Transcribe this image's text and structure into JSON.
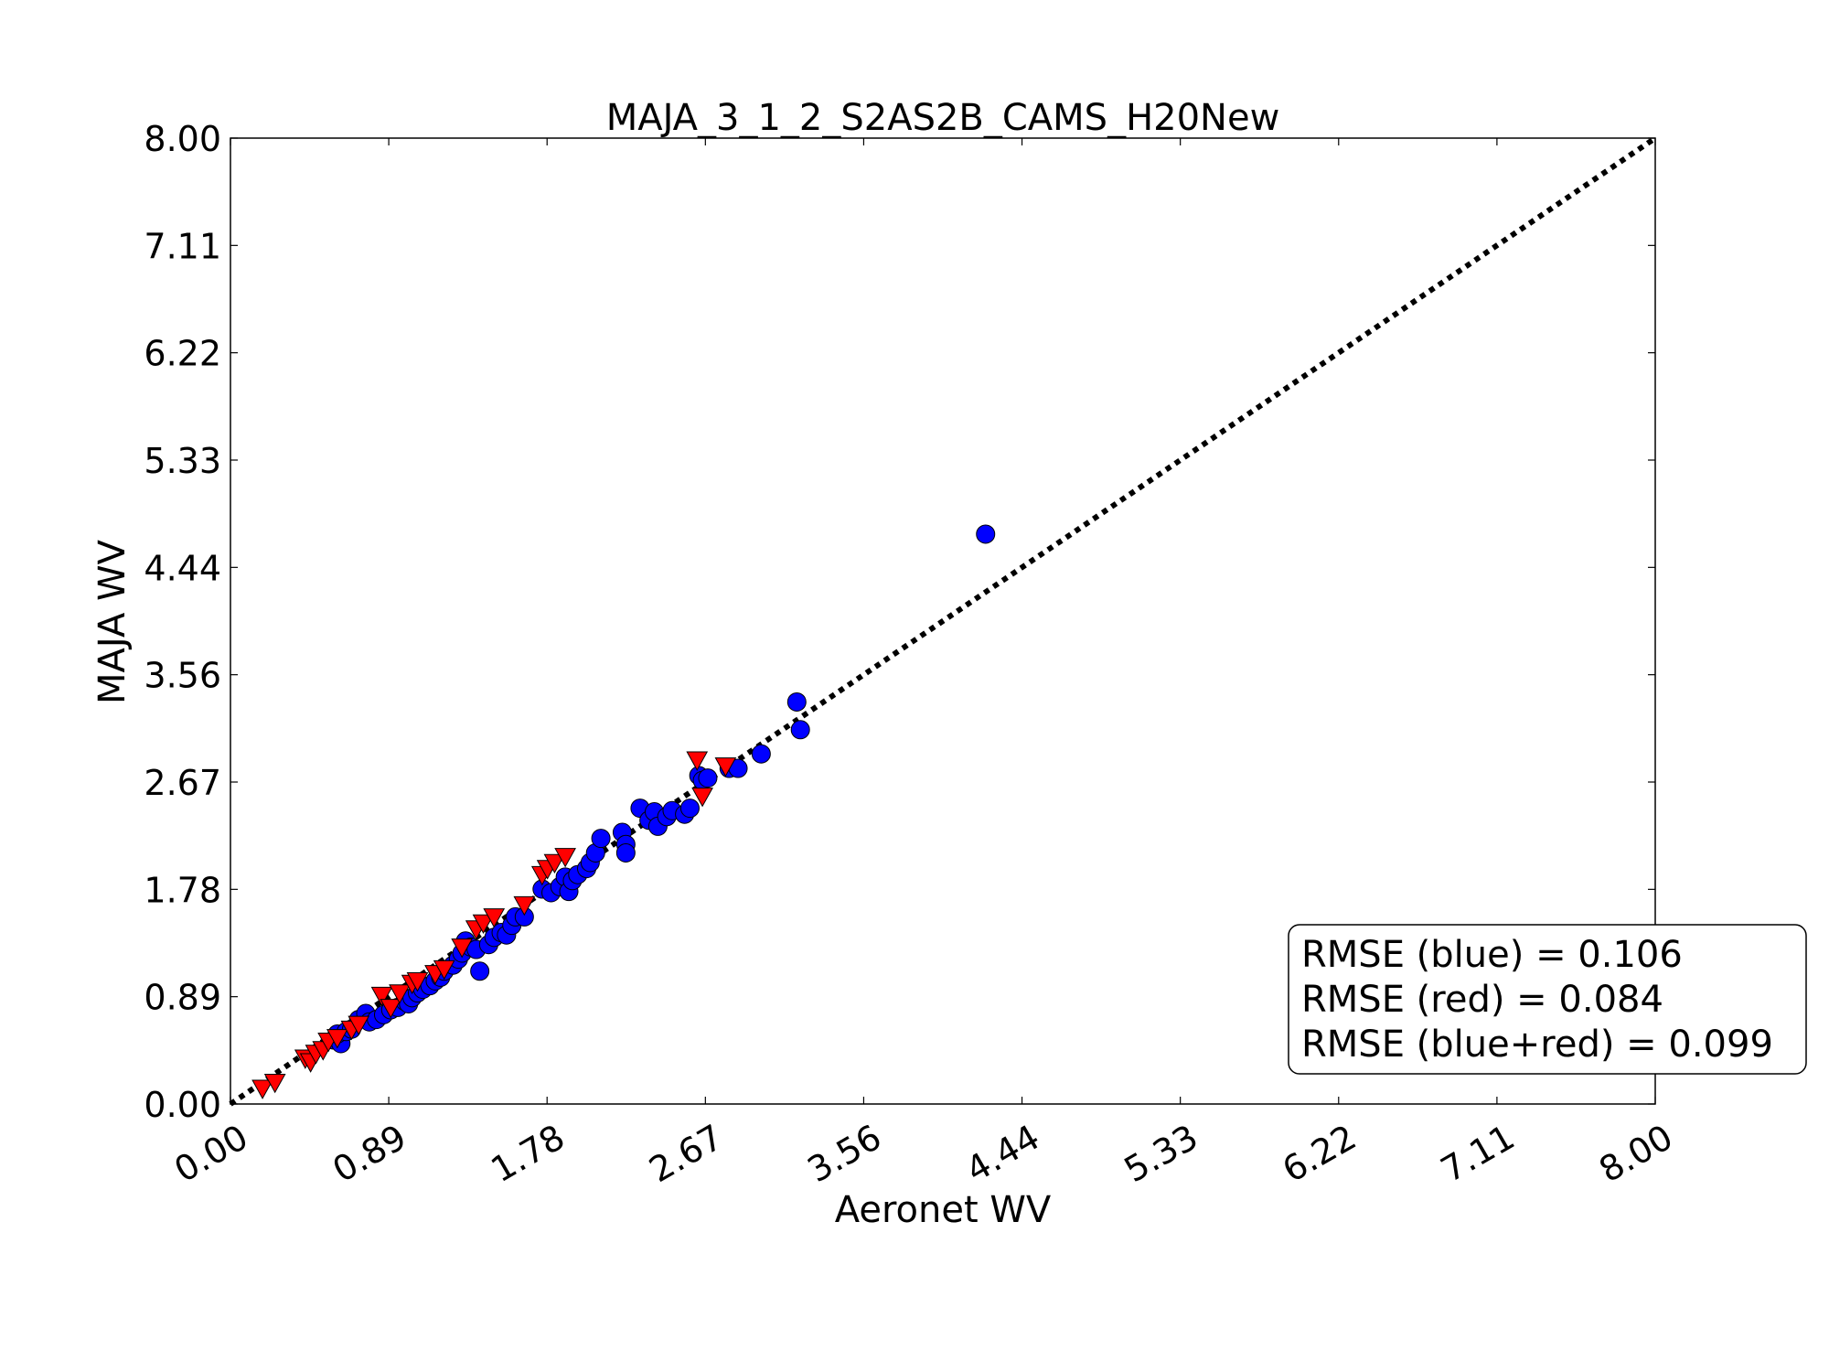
{
  "chart_data": {
    "type": "scatter",
    "title": "MAJA_3_1_2_S2AS2B_CAMS_H20New",
    "xlabel": "Aeronet WV",
    "ylabel": "MAJA WV",
    "xlim": [
      0,
      8
    ],
    "ylim": [
      0,
      8
    ],
    "x_ticks": [
      "0.00",
      "0.89",
      "1.78",
      "2.67",
      "3.56",
      "4.44",
      "5.33",
      "6.22",
      "7.11",
      "8.00"
    ],
    "y_ticks": [
      "0.00",
      "0.89",
      "1.78",
      "2.67",
      "3.56",
      "4.44",
      "5.33",
      "6.22",
      "7.11",
      "8.00"
    ],
    "grid": false,
    "reference_line": {
      "type": "identity",
      "style": "dotted",
      "color": "#000000"
    },
    "series": [
      {
        "marker": "circle",
        "color": "#0000ff",
        "points": [
          [
            0.58,
            0.53
          ],
          [
            0.62,
            0.5
          ],
          [
            0.6,
            0.58
          ],
          [
            0.65,
            0.6
          ],
          [
            0.68,
            0.62
          ],
          [
            0.72,
            0.7
          ],
          [
            0.76,
            0.75
          ],
          [
            0.78,
            0.68
          ],
          [
            0.82,
            0.7
          ],
          [
            0.86,
            0.74
          ],
          [
            0.9,
            0.78
          ],
          [
            0.94,
            0.8
          ],
          [
            0.98,
            0.85
          ],
          [
            1.0,
            0.83
          ],
          [
            1.02,
            0.88
          ],
          [
            1.05,
            0.92
          ],
          [
            1.08,
            0.95
          ],
          [
            1.12,
            0.98
          ],
          [
            1.15,
            1.02
          ],
          [
            1.18,
            1.05
          ],
          [
            1.2,
            1.1
          ],
          [
            1.25,
            1.15
          ],
          [
            1.28,
            1.2
          ],
          [
            1.3,
            1.25
          ],
          [
            1.32,
            1.35
          ],
          [
            1.35,
            1.3
          ],
          [
            1.38,
            1.28
          ],
          [
            1.4,
            1.1
          ],
          [
            1.45,
            1.32
          ],
          [
            1.48,
            1.38
          ],
          [
            1.52,
            1.42
          ],
          [
            1.55,
            1.4
          ],
          [
            1.58,
            1.48
          ],
          [
            1.6,
            1.55
          ],
          [
            1.65,
            1.55
          ],
          [
            1.75,
            1.78
          ],
          [
            1.8,
            1.75
          ],
          [
            1.85,
            1.8
          ],
          [
            1.88,
            1.88
          ],
          [
            1.9,
            1.76
          ],
          [
            1.92,
            1.85
          ],
          [
            1.95,
            1.9
          ],
          [
            2.0,
            1.95
          ],
          [
            2.02,
            2.0
          ],
          [
            2.05,
            2.08
          ],
          [
            2.08,
            2.2
          ],
          [
            2.2,
            2.25
          ],
          [
            2.22,
            2.15
          ],
          [
            2.22,
            2.08
          ],
          [
            2.3,
            2.45
          ],
          [
            2.35,
            2.35
          ],
          [
            2.38,
            2.42
          ],
          [
            2.4,
            2.3
          ],
          [
            2.45,
            2.38
          ],
          [
            2.48,
            2.43
          ],
          [
            2.55,
            2.4
          ],
          [
            2.58,
            2.45
          ],
          [
            2.63,
            2.72
          ],
          [
            2.65,
            2.68
          ],
          [
            2.68,
            2.7
          ],
          [
            2.8,
            2.78
          ],
          [
            2.85,
            2.78
          ],
          [
            2.98,
            2.9
          ],
          [
            3.18,
            3.33
          ],
          [
            3.2,
            3.1
          ],
          [
            4.24,
            4.72
          ]
        ]
      },
      {
        "marker": "triangle-down",
        "color": "#ff0000",
        "points": [
          [
            0.18,
            0.13
          ],
          [
            0.25,
            0.18
          ],
          [
            0.42,
            0.38
          ],
          [
            0.45,
            0.35
          ],
          [
            0.48,
            0.42
          ],
          [
            0.52,
            0.45
          ],
          [
            0.55,
            0.52
          ],
          [
            0.6,
            0.55
          ],
          [
            0.68,
            0.62
          ],
          [
            0.72,
            0.66
          ],
          [
            0.85,
            0.9
          ],
          [
            0.9,
            0.8
          ],
          [
            0.95,
            0.92
          ],
          [
            1.02,
            1.0
          ],
          [
            1.05,
            1.02
          ],
          [
            1.15,
            1.08
          ],
          [
            1.2,
            1.12
          ],
          [
            1.3,
            1.3
          ],
          [
            1.38,
            1.45
          ],
          [
            1.42,
            1.5
          ],
          [
            1.48,
            1.55
          ],
          [
            1.65,
            1.65
          ],
          [
            1.75,
            1.9
          ],
          [
            1.78,
            1.95
          ],
          [
            1.82,
            2.0
          ],
          [
            1.88,
            2.05
          ],
          [
            2.62,
            2.85
          ],
          [
            2.65,
            2.55
          ],
          [
            2.78,
            2.8
          ]
        ]
      }
    ],
    "annotation": {
      "lines": [
        "RMSE (blue) = 0.106",
        "RMSE (red) = 0.084",
        "RMSE (blue+red) = 0.099"
      ],
      "placement": "bottom-right"
    }
  }
}
